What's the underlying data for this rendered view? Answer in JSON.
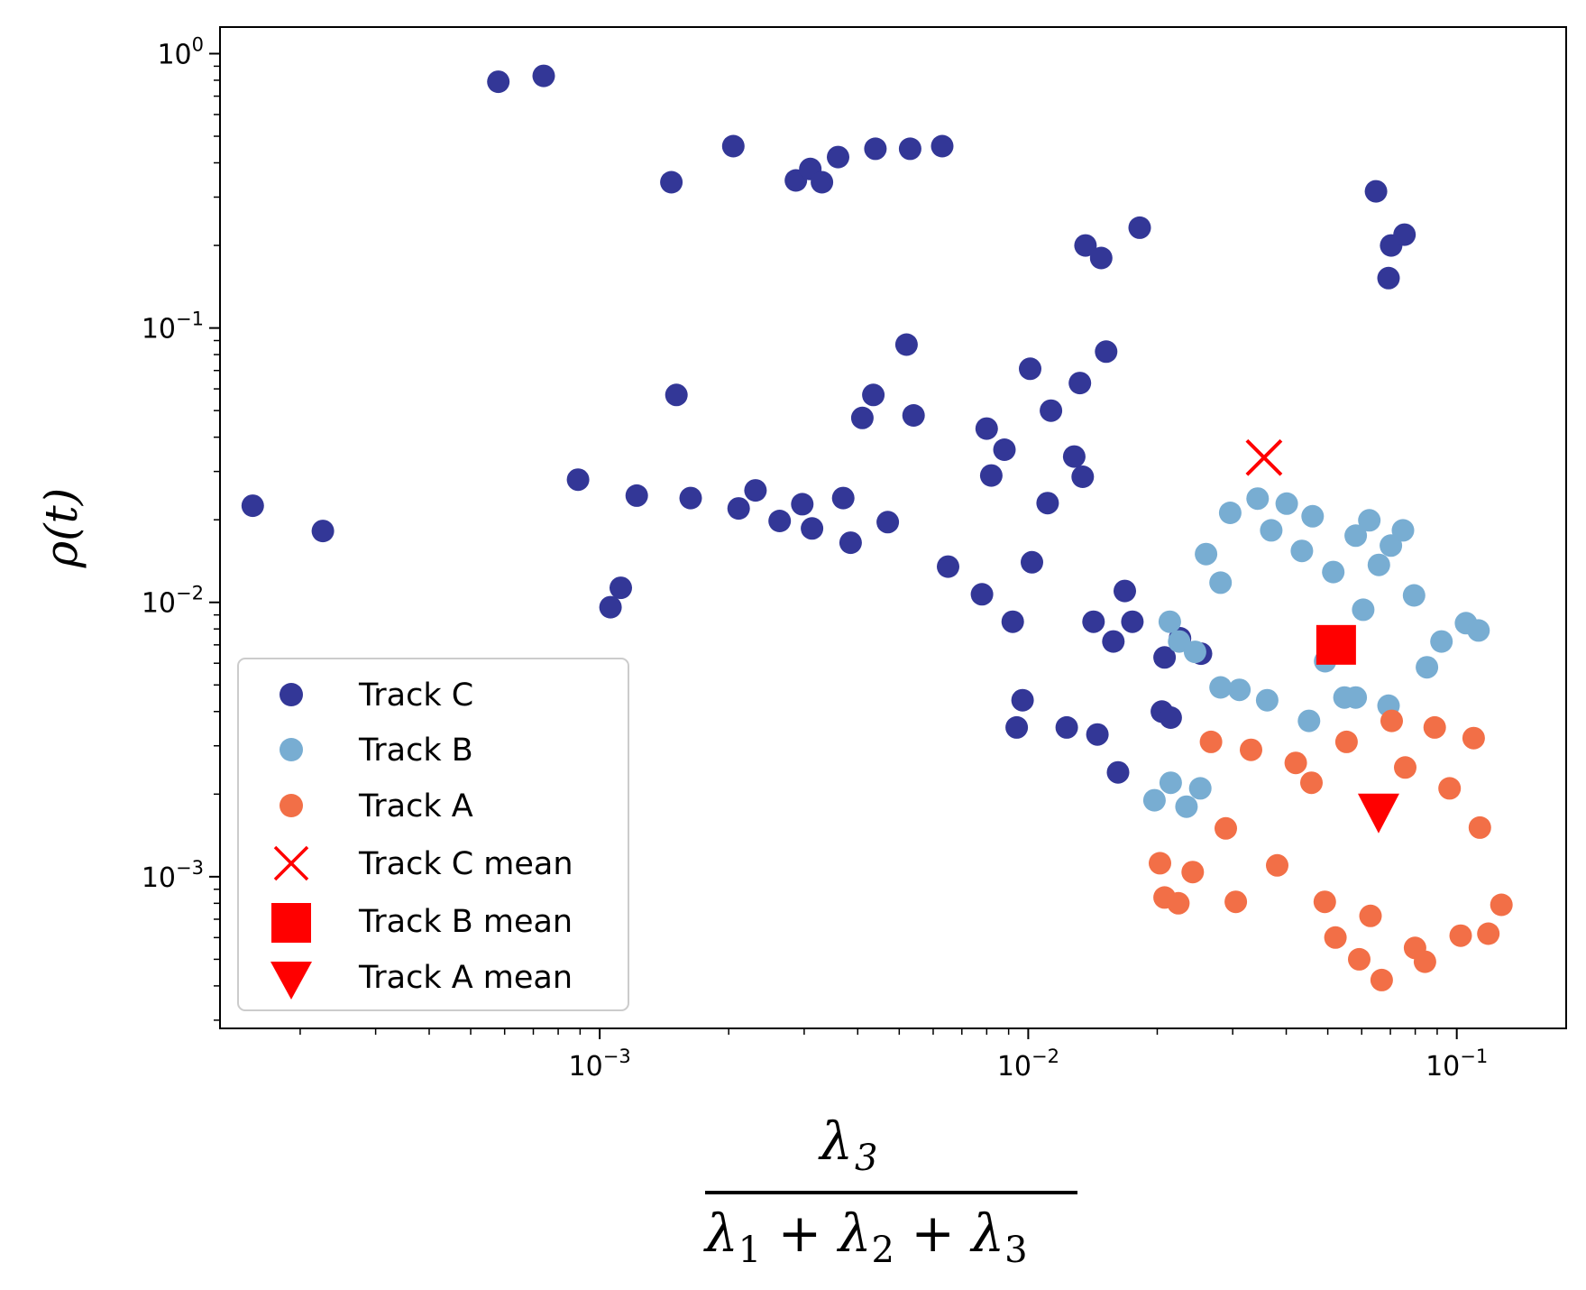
{
  "chart_data": {
    "type": "scatter",
    "x_scale": "log",
    "y_scale": "log",
    "xlim": [
      0.00013,
      0.18
    ],
    "ylim": [
      0.00028,
      1.25
    ],
    "grid": false,
    "legend_position": "lower-left",
    "xlabel": {
      "numerator": "λ",
      "numerator_sub": "3",
      "denominator": [
        {
          "t": "λ",
          "sub": "1"
        },
        {
          "t": " + ",
          "sub": ""
        },
        {
          "t": "λ",
          "sub": "2"
        },
        {
          "t": " + ",
          "sub": ""
        },
        {
          "t": "λ",
          "sub": "3"
        }
      ]
    },
    "ylabel": "ρ(t)",
    "x_ticks": [
      {
        "value": 0.001,
        "base": "10",
        "exp": "−3"
      },
      {
        "value": 0.01,
        "base": "10",
        "exp": "−2"
      },
      {
        "value": 0.1,
        "base": "10",
        "exp": "−1"
      }
    ],
    "y_ticks": [
      {
        "value": 1,
        "base": "10",
        "exp": "0"
      },
      {
        "value": 0.1,
        "base": "10",
        "exp": "−1"
      },
      {
        "value": 0.01,
        "base": "10",
        "exp": "−2"
      },
      {
        "value": 0.001,
        "base": "10",
        "exp": "−3"
      }
    ],
    "series": [
      {
        "name": "Track C",
        "color": "#333797",
        "marker": "circle",
        "points": [
          [
            0.000155,
            0.0225
          ],
          [
            0.000226,
            0.0182
          ],
          [
            0.00058,
            0.79
          ],
          [
            0.00074,
            0.83
          ],
          [
            0.00089,
            0.028
          ],
          [
            0.00106,
            0.0096
          ],
          [
            0.00112,
            0.0113
          ],
          [
            0.00122,
            0.0245
          ],
          [
            0.00147,
            0.34
          ],
          [
            0.00151,
            0.057
          ],
          [
            0.00163,
            0.024
          ],
          [
            0.00205,
            0.46
          ],
          [
            0.00211,
            0.022
          ],
          [
            0.00231,
            0.0256
          ],
          [
            0.00263,
            0.0198
          ],
          [
            0.00287,
            0.345
          ],
          [
            0.00297,
            0.0228
          ],
          [
            0.0031,
            0.38
          ],
          [
            0.00313,
            0.0186
          ],
          [
            0.0033,
            0.34
          ],
          [
            0.0036,
            0.42
          ],
          [
            0.0037,
            0.024
          ],
          [
            0.00385,
            0.0165
          ],
          [
            0.0041,
            0.047
          ],
          [
            0.00435,
            0.057
          ],
          [
            0.0044,
            0.45
          ],
          [
            0.0047,
            0.0196
          ],
          [
            0.0052,
            0.087
          ],
          [
            0.0053,
            0.45
          ],
          [
            0.0054,
            0.048
          ],
          [
            0.0063,
            0.46
          ],
          [
            0.0065,
            0.0135
          ],
          [
            0.0078,
            0.0107
          ],
          [
            0.008,
            0.043
          ],
          [
            0.0082,
            0.029
          ],
          [
            0.0088,
            0.036
          ],
          [
            0.0092,
            0.0085
          ],
          [
            0.0094,
            0.0035
          ],
          [
            0.0097,
            0.0044
          ],
          [
            0.0101,
            0.071
          ],
          [
            0.0102,
            0.014
          ],
          [
            0.0111,
            0.023
          ],
          [
            0.0113,
            0.05
          ],
          [
            0.0123,
            0.0035
          ],
          [
            0.0128,
            0.034
          ],
          [
            0.0132,
            0.063
          ],
          [
            0.0134,
            0.0287
          ],
          [
            0.0136,
            0.2
          ],
          [
            0.0142,
            0.0085
          ],
          [
            0.0145,
            0.0033
          ],
          [
            0.0148,
            0.18
          ],
          [
            0.0152,
            0.082
          ],
          [
            0.0158,
            0.0072
          ],
          [
            0.0162,
            0.0024
          ],
          [
            0.0168,
            0.011
          ],
          [
            0.0175,
            0.0085
          ],
          [
            0.0182,
            0.232
          ],
          [
            0.0205,
            0.004
          ],
          [
            0.0208,
            0.0063
          ],
          [
            0.0215,
            0.0038
          ],
          [
            0.0226,
            0.0074
          ],
          [
            0.0253,
            0.0065
          ],
          [
            0.0648,
            0.315
          ],
          [
            0.0703,
            0.2
          ],
          [
            0.0755,
            0.219
          ],
          [
            0.0693,
            0.152
          ]
        ]
      },
      {
        "name": "Track B",
        "color": "#78add2",
        "marker": "circle",
        "points": [
          [
            0.0197,
            0.0019
          ],
          [
            0.0215,
            0.0022
          ],
          [
            0.0234,
            0.0018
          ],
          [
            0.0252,
            0.0021
          ],
          [
            0.0214,
            0.0085
          ],
          [
            0.0225,
            0.0072
          ],
          [
            0.0245,
            0.0066
          ],
          [
            0.026,
            0.015
          ],
          [
            0.0281,
            0.0118
          ],
          [
            0.0296,
            0.0212
          ],
          [
            0.0311,
            0.0048
          ],
          [
            0.0343,
            0.0239
          ],
          [
            0.0369,
            0.0183
          ],
          [
            0.0401,
            0.0229
          ],
          [
            0.0435,
            0.0154
          ],
          [
            0.0461,
            0.0206
          ],
          [
            0.0493,
            0.0061
          ],
          [
            0.0515,
            0.0129
          ],
          [
            0.0547,
            0.0045
          ],
          [
            0.0581,
            0.0175
          ],
          [
            0.0605,
            0.0094
          ],
          [
            0.0625,
            0.0199
          ],
          [
            0.0658,
            0.0137
          ],
          [
            0.0702,
            0.0161
          ],
          [
            0.0749,
            0.0183
          ],
          [
            0.0795,
            0.0106
          ],
          [
            0.0852,
            0.0058
          ],
          [
            0.0921,
            0.0072
          ],
          [
            0.1051,
            0.0084
          ],
          [
            0.1124,
            0.0079
          ],
          [
            0.0281,
            0.0049
          ],
          [
            0.0361,
            0.0044
          ],
          [
            0.0452,
            0.0037
          ],
          [
            0.0581,
            0.0045
          ],
          [
            0.0693,
            0.0042
          ]
        ]
      },
      {
        "name": "Track A",
        "color": "#f26f47",
        "marker": "circle",
        "points": [
          [
            0.0203,
            0.00112
          ],
          [
            0.0208,
            0.00084
          ],
          [
            0.0224,
            0.0008
          ],
          [
            0.0242,
            0.00104
          ],
          [
            0.0267,
            0.0031
          ],
          [
            0.0289,
            0.0015
          ],
          [
            0.0305,
            0.00081
          ],
          [
            0.0331,
            0.0029
          ],
          [
            0.0381,
            0.0011
          ],
          [
            0.0421,
            0.0026
          ],
          [
            0.0458,
            0.0022
          ],
          [
            0.0492,
            0.00081
          ],
          [
            0.0521,
            0.0006
          ],
          [
            0.0553,
            0.0031
          ],
          [
            0.0592,
            0.0005
          ],
          [
            0.0629,
            0.00072
          ],
          [
            0.0668,
            0.00042
          ],
          [
            0.0705,
            0.0037
          ],
          [
            0.0758,
            0.0025
          ],
          [
            0.0799,
            0.00055
          ],
          [
            0.0843,
            0.00049
          ],
          [
            0.0888,
            0.0035
          ],
          [
            0.0962,
            0.0021
          ],
          [
            0.1021,
            0.00061
          ],
          [
            0.1095,
            0.0032
          ],
          [
            0.1185,
            0.00062
          ],
          [
            0.1271,
            0.00079
          ],
          [
            0.1132,
            0.00151
          ]
        ]
      }
    ],
    "means": [
      {
        "name": "Track C mean",
        "x": 0.0355,
        "y": 0.0337,
        "marker": "x",
        "color": "#ff0000"
      },
      {
        "name": "Track B mean",
        "x": 0.0523,
        "y": 0.007,
        "marker": "square",
        "color": "#ff0000"
      },
      {
        "name": "Track A mean",
        "x": 0.0657,
        "y": 0.0017,
        "marker": "triangle-down",
        "color": "#ff0000"
      }
    ]
  }
}
